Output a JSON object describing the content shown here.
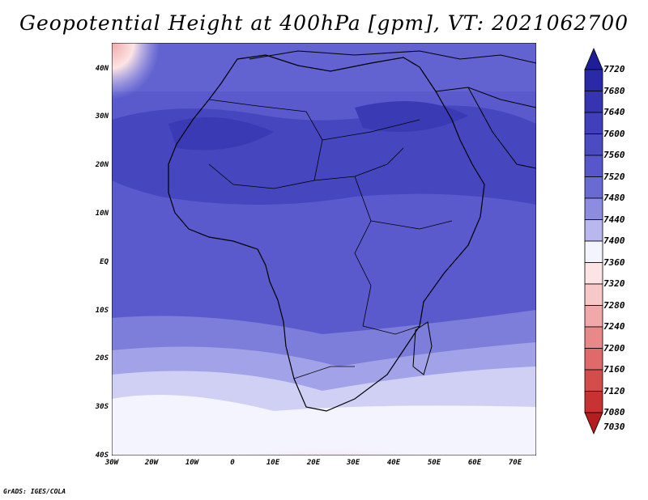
{
  "title": "Geopotential Height at 400hPa [gpm], VT: 2021062700",
  "map": {
    "lat_labels": [
      "40N",
      "30N",
      "20N",
      "10N",
      "EQ",
      "10S",
      "20S",
      "30S",
      "40S"
    ],
    "lon_labels": [
      "30W",
      "20W",
      "10W",
      "0",
      "10E",
      "20E",
      "30E",
      "40E",
      "50E",
      "60E",
      "70E"
    ]
  },
  "colorbar": {
    "labels": [
      "7720",
      "7680",
      "7640",
      "7600",
      "7560",
      "7520",
      "7480",
      "7440",
      "7400",
      "7360",
      "7320",
      "7280",
      "7240",
      "7200",
      "7160",
      "7120",
      "7080",
      "7030"
    ],
    "colors": [
      "#1e1e96",
      "#2a2aa8",
      "#3535b4",
      "#4040bc",
      "#4b4bc4",
      "#5757cc",
      "#6a6ad4",
      "#8c8ce0",
      "#b8b8ef",
      "#f4f4ff",
      "#fde4e4",
      "#f7c8c8",
      "#f0a8a8",
      "#e88888",
      "#e06a6a",
      "#d44c4c",
      "#c83232",
      "#b41e1e"
    ]
  },
  "footer": "GrADS: IGES/COLA"
}
